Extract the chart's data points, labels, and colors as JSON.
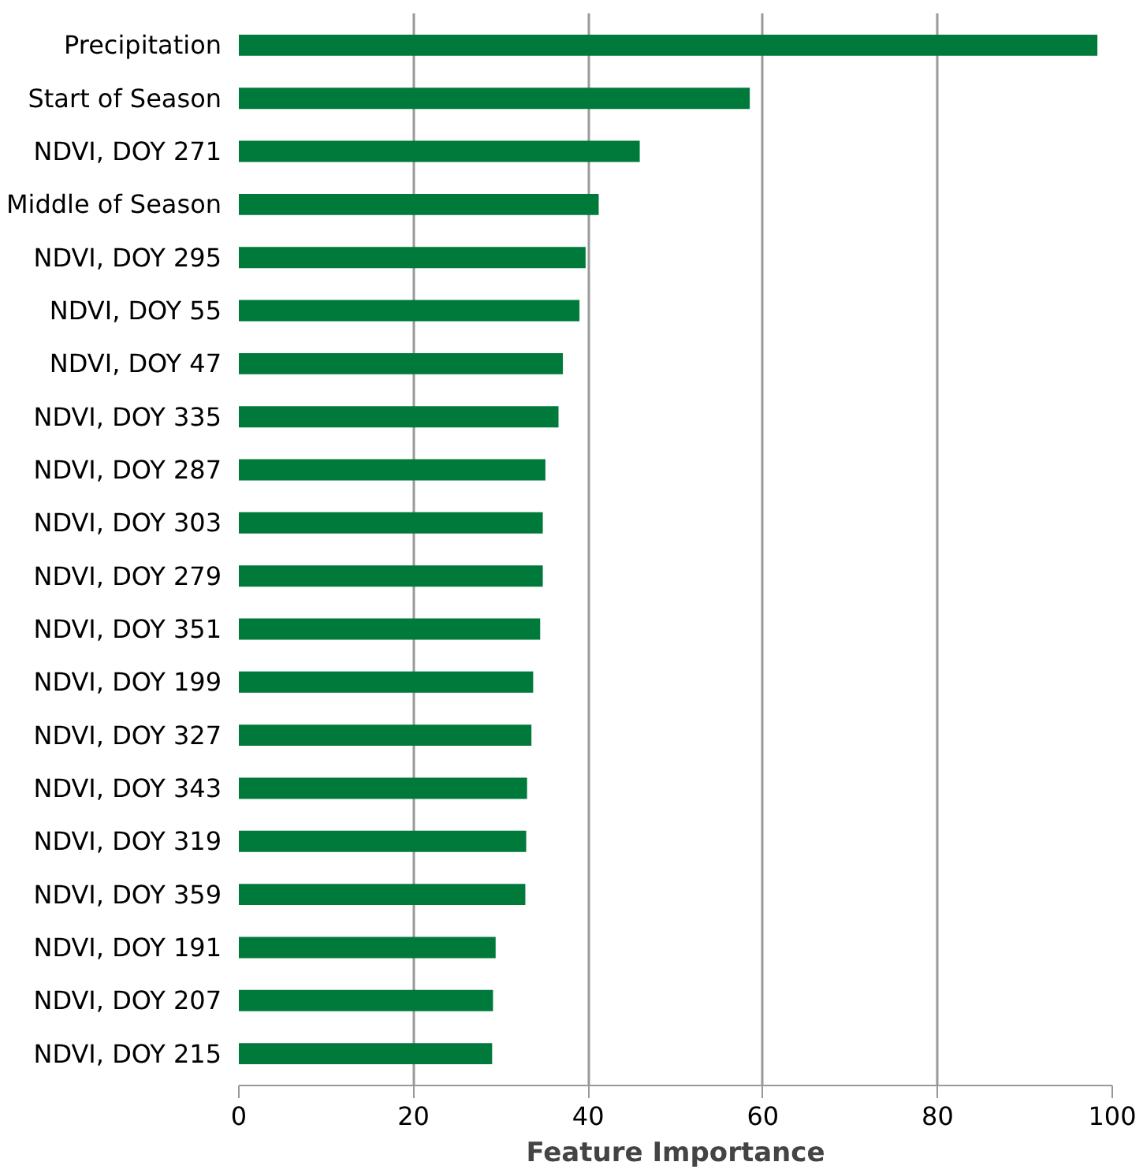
{
  "chart_data": {
    "type": "bar",
    "orientation": "horizontal",
    "xlabel": "Feature Importance",
    "categories": [
      "Precipitation",
      "Start of Season",
      "NDVI, DOY 271",
      "Middle of Season",
      "NDVI, DOY 295",
      "NDVI, DOY 55",
      "NDVI, DOY 47",
      "NDVI, DOY 335",
      "NDVI, DOY 287",
      "NDVI, DOY 303",
      "NDVI, DOY 279",
      "NDVI, DOY 351",
      "NDVI, DOY 199",
      "NDVI, DOY 327",
      "NDVI, DOY 343",
      "NDVI, DOY 319",
      "NDVI, DOY 359",
      "NDVI, DOY 191",
      "NDVI, DOY 207",
      "NDVI, DOY 215"
    ],
    "values": [
      98.3,
      58.5,
      45.9,
      41.2,
      39.7,
      39.0,
      37.1,
      36.6,
      35.1,
      34.8,
      34.8,
      34.5,
      33.7,
      33.5,
      33.0,
      32.9,
      32.8,
      29.4,
      29.1,
      29.0
    ],
    "color": "#007a3b",
    "xlim": [
      0,
      100
    ],
    "xticks": [
      0,
      20,
      40,
      60,
      80,
      100
    ],
    "grid": "x"
  }
}
